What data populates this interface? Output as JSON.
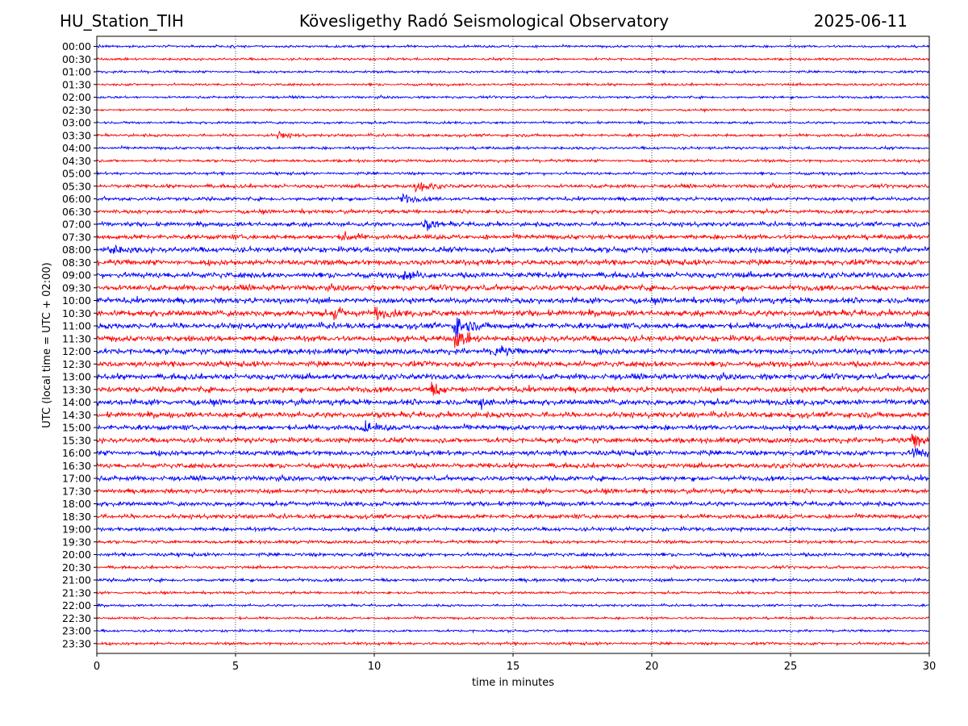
{
  "header": {
    "station": "HU_Station_TIH",
    "title": "Kövesligethy Radó Seismological Observatory",
    "date": "2025-06-11"
  },
  "chart_data": {
    "type": "line",
    "title": "Kövesligethy Radó Seismological Observatory",
    "xlabel": "time in minutes",
    "ylabel": "UTC (local time = UTC + 02:00)",
    "xlim": [
      0,
      30
    ],
    "xticks": [
      0,
      5,
      10,
      15,
      20,
      25,
      30
    ],
    "grid": "vertical dotted",
    "trace_colors": [
      "#0000ff",
      "#ff0000"
    ],
    "rows": [
      "00:00",
      "00:30",
      "01:00",
      "01:30",
      "02:00",
      "02:30",
      "03:00",
      "03:30",
      "04:00",
      "04:30",
      "05:00",
      "05:30",
      "06:00",
      "06:30",
      "07:00",
      "07:30",
      "08:00",
      "08:30",
      "09:00",
      "09:30",
      "10:00",
      "10:30",
      "11:00",
      "11:30",
      "12:00",
      "12:30",
      "13:00",
      "13:30",
      "14:00",
      "14:30",
      "15:00",
      "15:30",
      "16:00",
      "16:30",
      "17:00",
      "17:30",
      "18:00",
      "18:30",
      "19:00",
      "19:30",
      "20:00",
      "20:30",
      "21:00",
      "21:30",
      "22:00",
      "22:30",
      "23:00",
      "23:30"
    ],
    "noise_amplitude": [
      0.3,
      0.3,
      0.3,
      0.3,
      0.3,
      0.25,
      0.3,
      0.35,
      0.35,
      0.35,
      0.35,
      0.45,
      0.45,
      0.45,
      0.55,
      0.6,
      0.7,
      0.7,
      0.7,
      0.7,
      0.7,
      0.75,
      0.75,
      0.75,
      0.7,
      0.7,
      0.7,
      0.7,
      0.7,
      0.7,
      0.65,
      0.65,
      0.65,
      0.6,
      0.6,
      0.55,
      0.55,
      0.55,
      0.5,
      0.4,
      0.45,
      0.35,
      0.4,
      0.3,
      0.3,
      0.3,
      0.3,
      0.35
    ],
    "events": [
      {
        "row": "03:30",
        "minute": 6.5,
        "amplitude": 1.0
      },
      {
        "row": "05:30",
        "minute": 11.5,
        "amplitude": 2.0
      },
      {
        "row": "06:00",
        "minute": 11.0,
        "amplitude": 1.5
      },
      {
        "row": "07:00",
        "minute": 11.8,
        "amplitude": 1.3
      },
      {
        "row": "07:30",
        "minute": 8.8,
        "amplitude": 1.3
      },
      {
        "row": "08:00",
        "minute": 0.4,
        "amplitude": 1.5
      },
      {
        "row": "09:00",
        "minute": 11.0,
        "amplitude": 1.4
      },
      {
        "row": "10:30",
        "minute": 8.5,
        "amplitude": 1.6
      },
      {
        "row": "10:30",
        "minute": 10.0,
        "amplitude": 1.6
      },
      {
        "row": "11:00",
        "minute": 12.9,
        "amplitude": 3.5
      },
      {
        "row": "11:30",
        "minute": 12.9,
        "amplitude": 2.5
      },
      {
        "row": "12:00",
        "minute": 14.3,
        "amplitude": 2.0
      },
      {
        "row": "13:30",
        "minute": 12.0,
        "amplitude": 1.8
      },
      {
        "row": "14:00",
        "minute": 13.8,
        "amplitude": 1.5
      },
      {
        "row": "15:00",
        "minute": 9.6,
        "amplitude": 1.4
      },
      {
        "row": "15:30",
        "minute": 29.4,
        "amplitude": 2.5
      },
      {
        "row": "16:00",
        "minute": 29.4,
        "amplitude": 2.0
      }
    ]
  }
}
